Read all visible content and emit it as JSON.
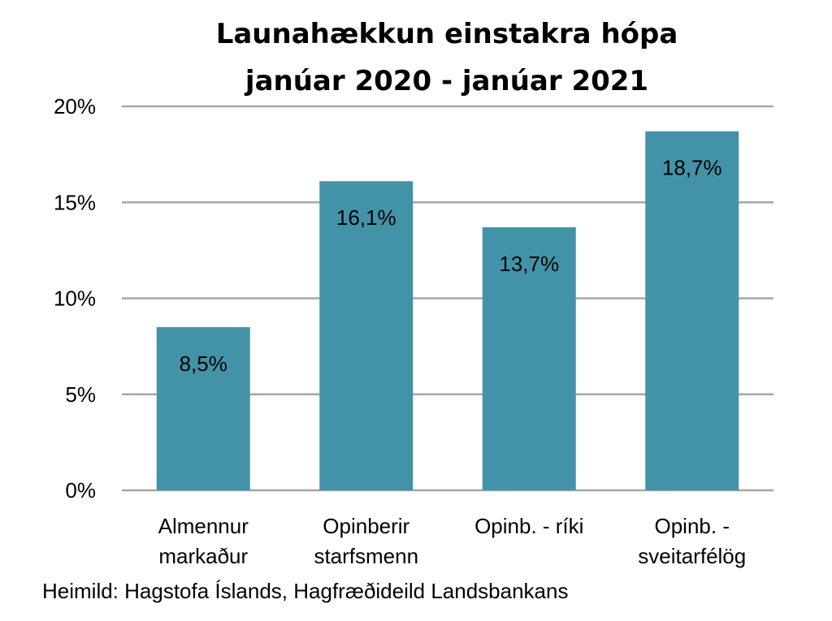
{
  "chart_data": {
    "type": "bar",
    "title_lines": [
      "Launahækkun einstakra hópa",
      "janúar 2020 - janúar 2021"
    ],
    "categories": [
      [
        "Almennur",
        "markaður"
      ],
      [
        "Opinberir",
        "starfsmenn"
      ],
      [
        "Opinb. - ríki"
      ],
      [
        "Opinb. -",
        "sveitarfélög"
      ]
    ],
    "values": [
      8.5,
      16.1,
      13.7,
      18.7
    ],
    "data_labels": [
      "8,5%",
      "16,1%",
      "13,7%",
      "18,7%"
    ],
    "ylim": [
      0,
      20
    ],
    "yticks": [
      0,
      5,
      10,
      15,
      20
    ],
    "ytick_labels": [
      "0%",
      "5%",
      "10%",
      "15%",
      "20%"
    ],
    "grid": true,
    "colors": {
      "bar": "#4393a8",
      "grid": "#a6a6a6"
    }
  },
  "source": "Heimild: Hagstofa Íslands, Hagfræðideild Landsbankans"
}
